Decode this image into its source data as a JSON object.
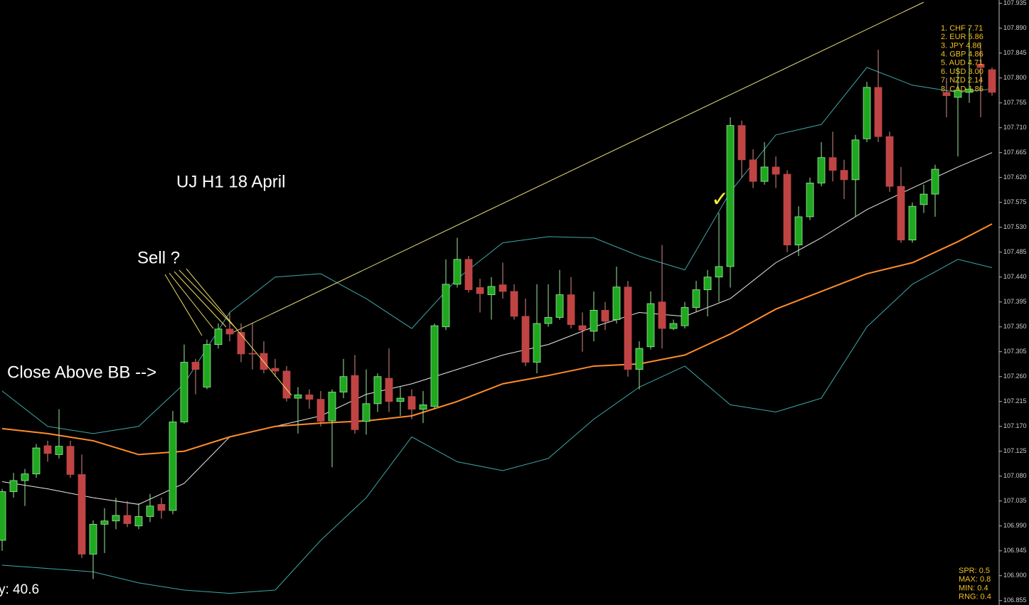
{
  "chart_data": {
    "type": "candlestick",
    "title": "UJ H1  18 April",
    "annotations": [
      "Sell ?",
      "Close Above BB -->"
    ],
    "corner_text": "y: 40.6",
    "up_color": "#1fa81f",
    "down_color": "#c04444",
    "open": [
      106.964,
      107.052,
      107.072,
      107.084,
      107.135,
      107.119,
      107.134,
      107.083,
      106.939,
      106.993,
      106.999,
      107.009,
      106.99,
      107.007,
      107.029,
      107.018,
      107.178,
      107.286,
      107.241,
      107.318,
      107.346,
      107.34,
      107.302,
      107.302,
      107.275,
      107.27,
      107.221,
      107.227,
      107.219,
      107.18,
      107.232,
      107.262,
      107.179,
      107.211,
      107.257,
      107.215,
      107.224,
      107.201,
      107.206,
      107.35,
      107.427,
      107.472,
      107.421,
      107.408,
      107.426,
      107.414,
      107.369,
      107.286,
      107.356,
      107.367,
      107.408,
      107.352,
      107.342,
      107.38,
      107.363,
      107.422,
      107.273,
      107.314,
      107.395,
      107.347,
      107.352,
      107.385,
      107.417,
      107.44,
      107.459,
      107.714,
      107.652,
      107.613,
      107.639,
      107.626,
      107.498,
      107.549,
      107.61,
      107.656,
      107.633,
      107.616,
      107.69,
      107.783,
      107.694,
      107.604,
      107.507,
      107.571,
      107.59,
      107.774,
      107.765,
      107.774,
      107.825,
      107.815
    ],
    "high": [
      107.057,
      107.086,
      107.093,
      107.138,
      107.144,
      107.201,
      107.144,
      107.119,
      107.0,
      107.022,
      107.041,
      107.035,
      107.031,
      107.048,
      107.041,
      107.198,
      107.318,
      107.292,
      107.327,
      107.356,
      107.376,
      107.356,
      107.356,
      107.324,
      107.292,
      107.279,
      107.241,
      107.237,
      107.234,
      107.237,
      107.292,
      107.299,
      107.273,
      107.266,
      107.311,
      107.241,
      107.237,
      107.234,
      107.356,
      107.472,
      107.511,
      107.478,
      107.437,
      107.44,
      107.466,
      107.427,
      107.401,
      107.427,
      107.427,
      107.453,
      107.44,
      107.376,
      107.414,
      107.395,
      107.459,
      107.433,
      107.324,
      107.414,
      107.498,
      107.363,
      107.395,
      107.433,
      107.453,
      107.556,
      107.729,
      107.723,
      107.671,
      107.684,
      107.658,
      107.633,
      107.568,
      107.62,
      107.684,
      107.703,
      107.652,
      107.697,
      107.793,
      107.851,
      107.703,
      107.639,
      107.575,
      107.607,
      107.643,
      107.8,
      107.819,
      107.89,
      107.864,
      107.819
    ],
    "low": [
      106.945,
      107.041,
      107.026,
      107.077,
      107.106,
      107.112,
      107.077,
      106.932,
      106.894,
      106.941,
      106.984,
      106.988,
      106.984,
      106.997,
      107.003,
      107.011,
      107.175,
      107.228,
      107.237,
      107.311,
      107.324,
      107.286,
      107.273,
      107.266,
      107.26,
      107.215,
      107.157,
      107.202,
      107.17,
      107.096,
      107.221,
      107.157,
      107.155,
      107.196,
      107.196,
      107.189,
      107.183,
      107.176,
      107.202,
      107.344,
      107.421,
      107.412,
      107.376,
      107.363,
      107.401,
      107.363,
      107.279,
      107.266,
      107.35,
      107.363,
      107.347,
      107.305,
      107.324,
      107.344,
      107.356,
      107.26,
      107.237,
      107.309,
      107.311,
      107.344,
      107.347,
      107.376,
      107.369,
      107.395,
      107.421,
      107.62,
      107.601,
      107.607,
      107.601,
      107.485,
      107.478,
      107.543,
      107.604,
      107.613,
      107.581,
      107.549,
      107.684,
      107.684,
      107.594,
      107.502,
      107.502,
      107.556,
      107.549,
      107.729,
      107.658,
      107.755,
      107.729,
      107.768
    ],
    "close": [
      107.052,
      107.072,
      107.084,
      107.131,
      107.121,
      107.134,
      107.083,
      106.939,
      106.993,
      106.999,
      107.009,
      106.994,
      107.007,
      107.026,
      107.018,
      107.178,
      107.286,
      107.273,
      107.318,
      107.346,
      107.337,
      107.301,
      107.301,
      107.273,
      107.27,
      107.221,
      107.227,
      107.219,
      107.179,
      107.232,
      107.26,
      107.164,
      107.211,
      107.26,
      107.215,
      107.221,
      107.201,
      107.209,
      107.352,
      107.427,
      107.472,
      107.417,
      107.41,
      107.423,
      107.414,
      107.369,
      107.286,
      107.356,
      107.367,
      107.408,
      107.354,
      107.344,
      107.38,
      107.36,
      107.422,
      107.273,
      107.311,
      107.392,
      107.347,
      107.356,
      107.385,
      107.417,
      107.44,
      107.459,
      107.714,
      107.652,
      107.613,
      107.639,
      107.626,
      107.498,
      107.549,
      107.61,
      107.656,
      107.633,
      107.616,
      107.688,
      107.783,
      107.694,
      107.604,
      107.507,
      107.568,
      107.59,
      107.635,
      107.768,
      107.777,
      107.78,
      107.819,
      107.774
    ],
    "overlays": [
      {
        "color": "#3fa7a7",
        "x": [
          0,
          4,
          8,
          12,
          16,
          20,
          24,
          28,
          32,
          36,
          40,
          44,
          48,
          52,
          56,
          60,
          64,
          68,
          72,
          76,
          80,
          84,
          87
        ],
        "values": [
          107.234,
          107.17,
          107.157,
          107.17,
          107.247,
          107.376,
          107.44,
          107.446,
          107.401,
          107.347,
          107.437,
          107.502,
          107.513,
          107.511,
          107.478,
          107.453,
          107.594,
          107.697,
          107.716,
          107.819,
          107.787,
          107.774,
          107.78
        ]
      },
      {
        "color": "#3fa7a7",
        "x": [
          0,
          4,
          8,
          12,
          16,
          20,
          24,
          28,
          32,
          36,
          40,
          44,
          48,
          52,
          56,
          60,
          64,
          68,
          72,
          76,
          80,
          84,
          87
        ],
        "values": [
          106.919,
          106.913,
          106.907,
          106.887,
          106.874,
          106.868,
          106.874,
          106.964,
          107.041,
          107.151,
          107.106,
          107.09,
          107.112,
          107.183,
          107.241,
          107.279,
          107.209,
          107.196,
          107.221,
          107.35,
          107.427,
          107.472,
          107.457
        ]
      },
      {
        "color": "#e8e8e8",
        "x": [
          0,
          4,
          8,
          12,
          16,
          20,
          24,
          28,
          32,
          36,
          40,
          44,
          48,
          52,
          56,
          60,
          64,
          68,
          72,
          76,
          80,
          84,
          87
        ],
        "values": [
          107.07,
          107.057,
          107.041,
          107.029,
          107.067,
          107.151,
          107.17,
          107.189,
          107.228,
          107.247,
          107.273,
          107.299,
          107.318,
          107.35,
          107.376,
          107.369,
          107.401,
          107.466,
          107.511,
          107.562,
          107.601,
          107.639,
          107.665
        ]
      },
      {
        "color": "#ff8c2a",
        "x": [
          0,
          4,
          8,
          12,
          16,
          20,
          24,
          28,
          32,
          36,
          40,
          44,
          48,
          52,
          56,
          60,
          64,
          68,
          72,
          76,
          80,
          84,
          87
        ],
        "values": [
          107.166,
          107.157,
          107.144,
          107.119,
          107.125,
          107.151,
          107.17,
          107.176,
          107.18,
          107.189,
          107.215,
          107.247,
          107.262,
          107.279,
          107.283,
          107.299,
          107.337,
          107.382,
          107.414,
          107.446,
          107.466,
          107.504,
          107.536
        ]
      },
      {
        "color": "#e8e07a",
        "x": [
          20,
          81
        ],
        "values": [
          107.337,
          107.937
        ]
      }
    ],
    "ylim": [
      106.847,
      107.941
    ],
    "yticks": [
      107.935,
      {
        "value": 107.89,
        "label": "107.890"
      },
      107.845,
      {
        "value": 107.8,
        "label": "107.800"
      },
      107.755,
      {
        "value": 107.71,
        "label": "107.710"
      },
      107.665,
      {
        "value": 107.62,
        "label": "107.620"
      },
      107.575,
      {
        "value": 107.53,
        "label": "107.530"
      },
      107.485,
      {
        "value": 107.44,
        "label": "107.440"
      },
      107.395,
      {
        "value": 107.35,
        "label": "107.350"
      },
      107.305,
      {
        "value": 107.26,
        "label": "107.260"
      },
      107.215,
      {
        "value": 107.17,
        "label": "107.170"
      },
      107.125,
      {
        "value": 107.08,
        "label": "107.080"
      },
      107.035,
      {
        "value": 106.99,
        "label": "106.990"
      },
      106.945,
      {
        "value": 106.9,
        "label": "106.900"
      },
      106.855
    ],
    "strength_table": [
      "1. CHF 7.71",
      "2. EUR 5.86",
      "3. JPY 4.86",
      "4. GBP 4.86",
      "5. AUD 4.71",
      "6. USD 3.00",
      "7. NZD 2.14",
      "8. CAD 1.86"
    ],
    "spread_info": [
      "SPR: 0.5",
      "MAX: 0.8",
      "MIN: 0.4",
      "RNG: 0.4"
    ]
  }
}
